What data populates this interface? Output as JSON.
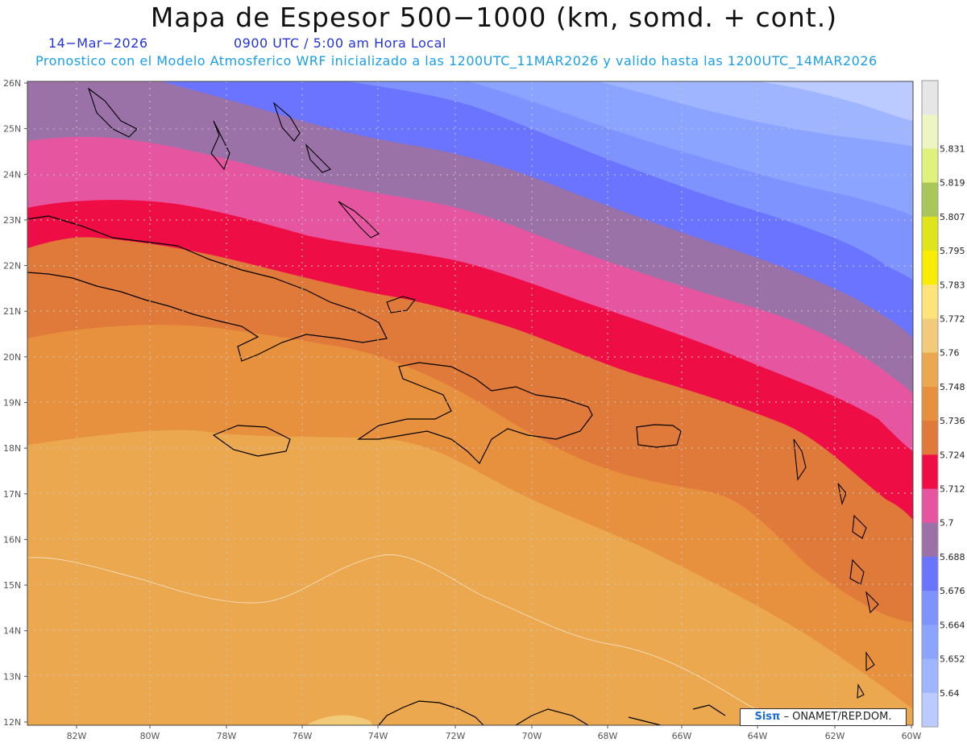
{
  "title": "Mapa de Espesor 500−1000 (km, somd. + cont.)",
  "date_label": "14−Mar−2026",
  "time_label": "0900 UTC / 5:00 am Hora Local",
  "forecast_label": "Pronostico con el Modelo Atmosferico WRF inicializado a las 1200UTC_11MAR2026 y valido hasta las  1200UTC_14MAR2026",
  "credit": {
    "brand": "Sisπ",
    "text": "– ONAMET/REP.DOM."
  },
  "map": {
    "lat_labels": [
      "26N",
      "25N",
      "24N",
      "23N",
      "22N",
      "21N",
      "20N",
      "19N",
      "18N",
      "17N",
      "16N",
      "15N",
      "14N",
      "13N",
      "12N"
    ],
    "lon_labels": [
      "82W",
      "80W",
      "78W",
      "76W",
      "74W",
      "72W",
      "70W",
      "68W",
      "66W",
      "64W",
      "62W",
      "60W"
    ],
    "lat_range": [
      12,
      26
    ],
    "lon_range": [
      -83.2,
      -60
    ]
  },
  "colorbar": {
    "levels": [
      "5.64",
      "5.652",
      "5.664",
      "5.676",
      "5.688",
      "5.7",
      "5.712",
      "5.724",
      "5.736",
      "5.748",
      "5.76",
      "5.772",
      "5.783",
      "5.795",
      "5.807",
      "5.819",
      "5.831"
    ],
    "colors": [
      "#bccbff",
      "#9fb5ff",
      "#8aa4ff",
      "#7f93ff",
      "#6b74ff",
      "#9a72a8",
      "#e655a0",
      "#ee0e45",
      "#e07a3a",
      "#e7913f",
      "#eba84e",
      "#f1cb7a",
      "#fde37a",
      "#f8ec00",
      "#dfe41b",
      "#a9c65a",
      "#e1f27c",
      "#edf6c2",
      "#e6e6e6"
    ]
  }
}
